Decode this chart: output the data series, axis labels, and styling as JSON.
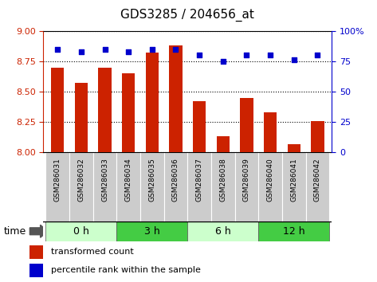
{
  "title": "GDS3285 / 204656_at",
  "samples": [
    "GSM286031",
    "GSM286032",
    "GSM286033",
    "GSM286034",
    "GSM286035",
    "GSM286036",
    "GSM286037",
    "GSM286038",
    "GSM286039",
    "GSM286040",
    "GSM286041",
    "GSM286042"
  ],
  "bar_values": [
    8.7,
    8.57,
    8.7,
    8.65,
    8.82,
    8.88,
    8.42,
    8.13,
    8.45,
    8.33,
    8.07,
    8.26
  ],
  "dot_values": [
    85,
    83,
    85,
    83,
    85,
    85,
    80,
    75,
    80,
    80,
    76,
    80
  ],
  "ymin": 8.0,
  "ymax": 9.0,
  "yright_min": 0,
  "yright_max": 100,
  "yticks_left": [
    8.0,
    8.25,
    8.5,
    8.75,
    9.0
  ],
  "yticks_right": [
    0,
    25,
    50,
    75,
    100
  ],
  "bar_color": "#cc2200",
  "dot_color": "#0000cc",
  "bar_width": 0.55,
  "groups": [
    {
      "label": "0 h",
      "start": 0,
      "end": 2,
      "color": "#ccffcc"
    },
    {
      "label": "3 h",
      "start": 3,
      "end": 5,
      "color": "#44cc44"
    },
    {
      "label": "6 h",
      "start": 6,
      "end": 8,
      "color": "#ccffcc"
    },
    {
      "label": "12 h",
      "start": 9,
      "end": 11,
      "color": "#44cc44"
    }
  ],
  "time_label": "time",
  "legend_bar_label": "transformed count",
  "legend_dot_label": "percentile rank within the sample",
  "grid_color": "black",
  "bg_xticklabel": "#cccccc",
  "title_fontsize": 11
}
